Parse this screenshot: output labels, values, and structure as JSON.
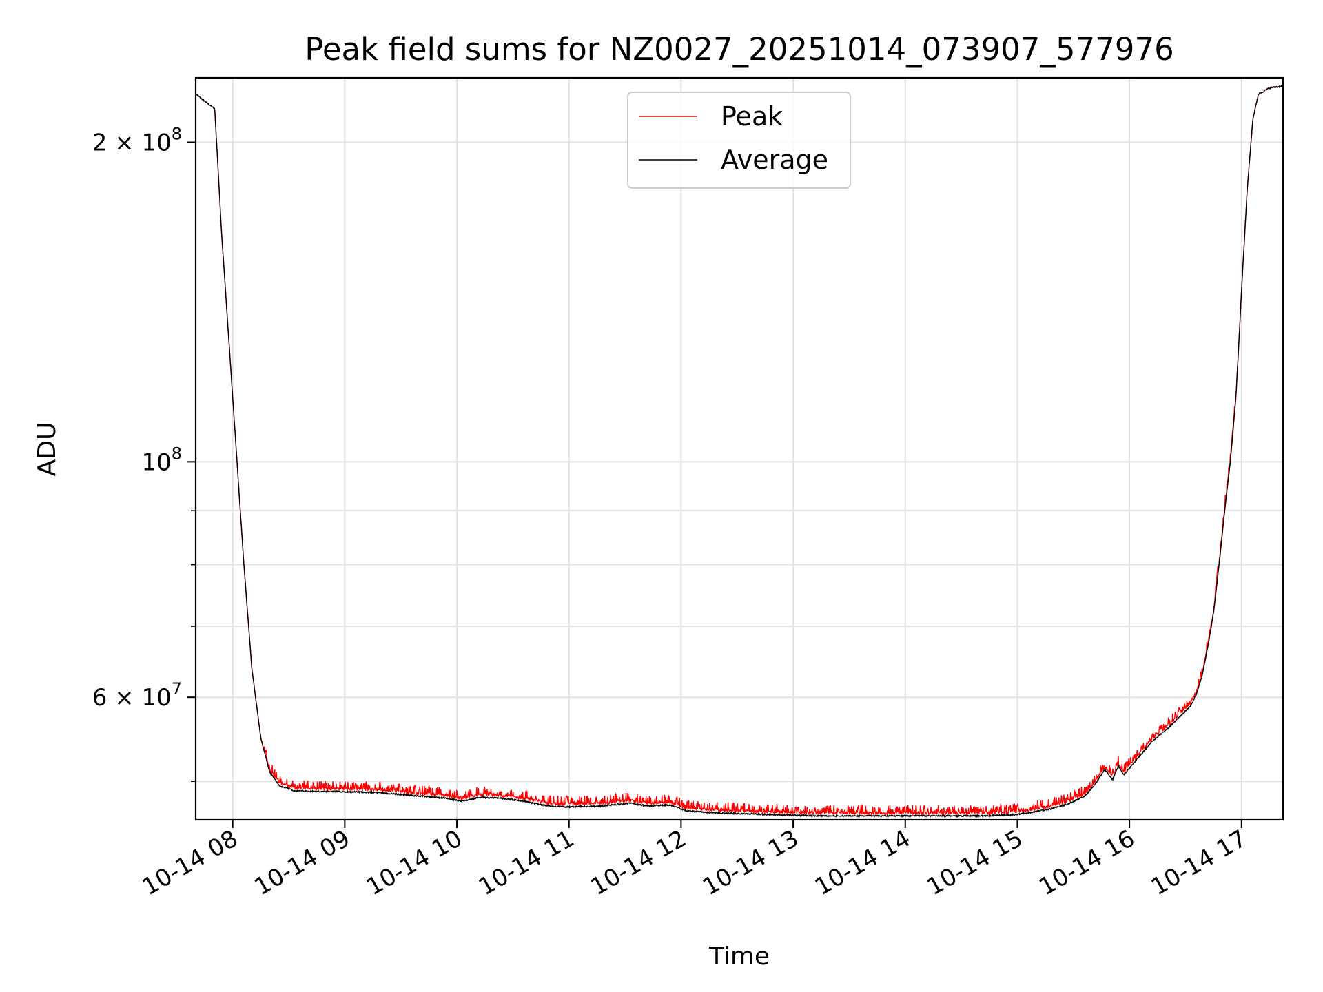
{
  "chart_data": {
    "type": "line",
    "title": "Peak field sums for NZ0027_20251014_073907_577976",
    "xlabel": "Time",
    "ylabel": "ADU",
    "y_scale": "log",
    "xlim": [
      7.67,
      17.37
    ],
    "ylim": [
      46000000,
      230000000
    ],
    "grid": true,
    "legend_position": "top-center",
    "x_ticks": [
      {
        "value": 8,
        "label": "10-14 08"
      },
      {
        "value": 9,
        "label": "10-14 09"
      },
      {
        "value": 10,
        "label": "10-14 10"
      },
      {
        "value": 11,
        "label": "10-14 11"
      },
      {
        "value": 12,
        "label": "10-14 12"
      },
      {
        "value": 13,
        "label": "10-14 13"
      },
      {
        "value": 14,
        "label": "10-14 14"
      },
      {
        "value": 15,
        "label": "10-14 15"
      },
      {
        "value": 16,
        "label": "10-14 16"
      },
      {
        "value": 17,
        "label": "10-14 17"
      }
    ],
    "y_major_ticks": [
      {
        "value": 60000000,
        "label": "6 × 10",
        "exp": "7"
      },
      {
        "value": 100000000,
        "label": "10",
        "exp": "8"
      },
      {
        "value": 200000000,
        "label": "2 × 10",
        "exp": "8"
      }
    ],
    "y_minor_ticks": [
      50000000,
      70000000,
      80000000,
      90000000
    ],
    "x_unit": "hours (local time, 2025-10-14)",
    "average_points": [
      [
        7.67,
        222000000
      ],
      [
        7.84,
        215000000
      ],
      [
        7.9,
        165000000
      ],
      [
        8.0,
        115000000
      ],
      [
        8.1,
        80000000
      ],
      [
        8.17,
        64000000
      ],
      [
        8.25,
        55000000
      ],
      [
        8.33,
        51000000
      ],
      [
        8.42,
        49500000
      ],
      [
        8.55,
        49000000
      ],
      [
        8.8,
        48900000
      ],
      [
        9.0,
        48900000
      ],
      [
        9.3,
        48800000
      ],
      [
        9.6,
        48500000
      ],
      [
        9.9,
        48200000
      ],
      [
        10.05,
        47900000
      ],
      [
        10.2,
        48300000
      ],
      [
        10.4,
        48200000
      ],
      [
        10.6,
        47900000
      ],
      [
        10.8,
        47400000
      ],
      [
        11.0,
        47300000
      ],
      [
        11.3,
        47400000
      ],
      [
        11.55,
        47700000
      ],
      [
        11.7,
        47400000
      ],
      [
        11.9,
        47500000
      ],
      [
        12.05,
        46900000
      ],
      [
        12.3,
        46700000
      ],
      [
        12.6,
        46600000
      ],
      [
        12.9,
        46500000
      ],
      [
        13.2,
        46400000
      ],
      [
        13.5,
        46400000
      ],
      [
        13.8,
        46400000
      ],
      [
        14.1,
        46400000
      ],
      [
        14.4,
        46400000
      ],
      [
        14.7,
        46400000
      ],
      [
        14.95,
        46500000
      ],
      [
        15.1,
        46700000
      ],
      [
        15.3,
        47100000
      ],
      [
        15.45,
        47600000
      ],
      [
        15.6,
        48400000
      ],
      [
        15.7,
        49800000
      ],
      [
        15.78,
        51300000
      ],
      [
        15.85,
        50200000
      ],
      [
        15.9,
        51700000
      ],
      [
        15.95,
        50700000
      ],
      [
        16.05,
        52200000
      ],
      [
        16.2,
        54500000
      ],
      [
        16.35,
        56200000
      ],
      [
        16.45,
        57500000
      ],
      [
        16.55,
        59000000
      ],
      [
        16.6,
        60500000
      ],
      [
        16.65,
        63000000
      ],
      [
        16.7,
        67000000
      ],
      [
        16.75,
        72000000
      ],
      [
        16.8,
        80000000
      ],
      [
        16.85,
        90000000
      ],
      [
        16.9,
        100000000
      ],
      [
        16.95,
        115000000
      ],
      [
        17.0,
        145000000
      ],
      [
        17.05,
        180000000
      ],
      [
        17.1,
        210000000
      ],
      [
        17.15,
        222000000
      ],
      [
        17.25,
        225000000
      ],
      [
        17.37,
        226000000
      ]
    ],
    "series": [
      {
        "name": "Peak",
        "color": "#ff0000",
        "style": "peak"
      },
      {
        "name": "Average",
        "color": "#000000",
        "style": "average"
      }
    ]
  }
}
